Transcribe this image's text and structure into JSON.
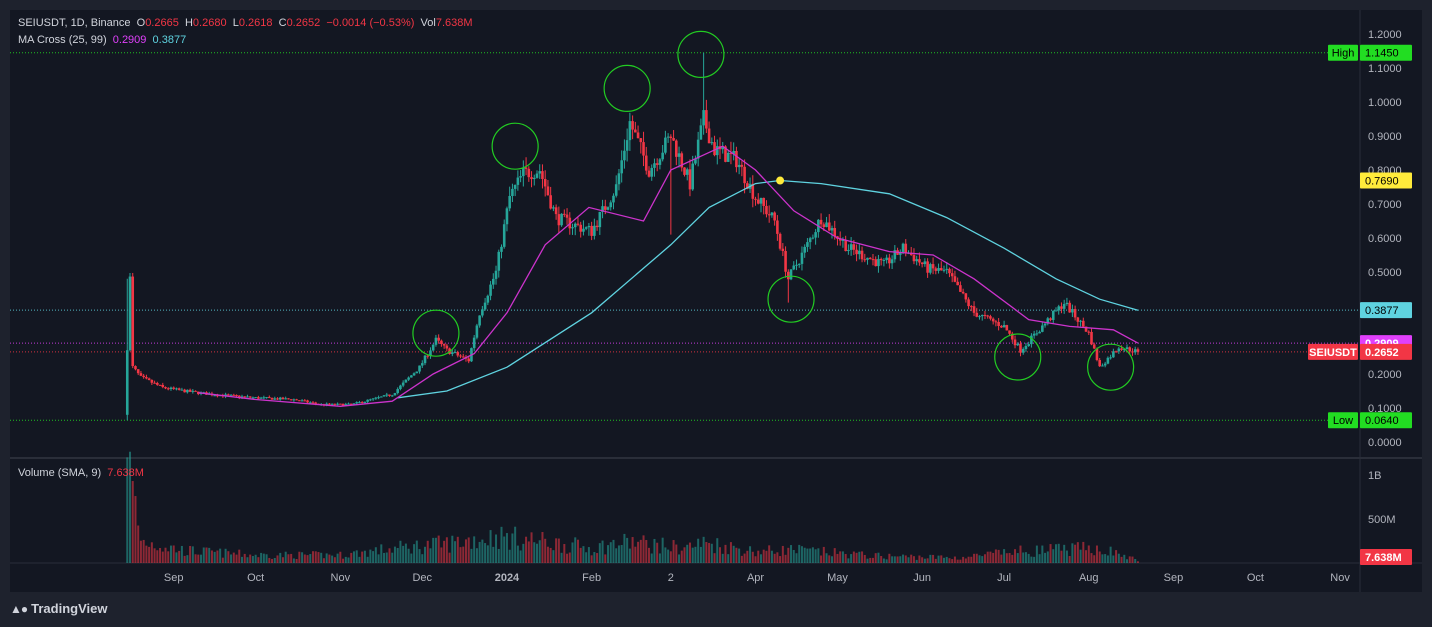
{
  "header": {
    "symbol": "SEIUSDT, 1D, Binance",
    "open_label": "O",
    "open": "0.2665",
    "high_label": "H",
    "high": "0.2680",
    "low_label": "L",
    "low": "0.2618",
    "close_label": "C",
    "close": "0.2652",
    "change": "−0.0014 (−0.53%)",
    "vol_label": "Vol",
    "vol": "7.638M"
  },
  "ma_legend": {
    "label": "MA Cross (25, 99)",
    "ma25": "0.2909",
    "ma99": "0.3877"
  },
  "volume_legend": {
    "label": "Volume (SMA, 9)",
    "value": "7.638M"
  },
  "colors": {
    "up": "#26a69a",
    "down": "#f23645",
    "ma25": "#cc33cc",
    "ma99": "#5fd3e0",
    "cross": "#ffeb3b",
    "circle": "#22cc22",
    "level": "#4caf50",
    "bg": "#131722"
  },
  "brand": {
    "name": "TradingView",
    "icon": "tradingview-logo-icon"
  },
  "chart_data": {
    "type": "candlestick",
    "price_axis": {
      "ylim": [
        0.0,
        1.2
      ],
      "ticks": [
        "1.2000",
        "1.1000",
        "1.0000",
        "0.9000",
        "0.8000",
        "0.7000",
        "0.6000",
        "0.5000",
        "0.4000",
        "0.3000",
        "0.2000",
        "0.1000",
        "0.0000"
      ]
    },
    "volume_axis": {
      "ticks": [
        "1B",
        "500M"
      ]
    },
    "x_labels": [
      "Sep",
      "Oct",
      "Nov",
      "Dec",
      "2024",
      "Feb",
      "2",
      "Apr",
      "May",
      "Jun",
      "Jul",
      "Aug",
      "Sep",
      "Oct",
      "Nov"
    ],
    "x_range": [
      "2023-08-16",
      "2024-11-05"
    ],
    "price_markers": [
      {
        "label": "High",
        "value": "1.1450",
        "price": 1.145,
        "color": "#22dd22"
      },
      {
        "label": "",
        "value": "0.7690",
        "price": 0.769,
        "color": "#ffeb3b"
      },
      {
        "label": "",
        "value": "0.3877",
        "price": 0.3877,
        "color": "#5fd3e0"
      },
      {
        "label": "",
        "value": "0.2909",
        "price": 0.2909,
        "color": "#e040fb"
      },
      {
        "label": "SEIUSDT",
        "value": "0.2652",
        "price": 0.2652,
        "color": "#f23645"
      },
      {
        "label": "Low",
        "value": "0.0640",
        "price": 0.064,
        "color": "#22dd22"
      }
    ],
    "volume_marker": {
      "value": "7.638M",
      "color": "#f23645"
    },
    "price_path": [
      [
        "2023-08-15",
        0.064
      ],
      [
        "2023-08-16",
        0.48
      ],
      [
        "2023-08-17",
        0.22
      ],
      [
        "2023-08-20",
        0.19
      ],
      [
        "2023-08-28",
        0.16
      ],
      [
        "2023-09-05",
        0.15
      ],
      [
        "2023-09-15",
        0.14
      ],
      [
        "2023-10-01",
        0.13
      ],
      [
        "2023-10-15",
        0.125
      ],
      [
        "2023-10-25",
        0.11
      ],
      [
        "2023-11-05",
        0.11
      ],
      [
        "2023-11-20",
        0.14
      ],
      [
        "2023-11-30",
        0.22
      ],
      [
        "2023-12-06",
        0.3
      ],
      [
        "2023-12-10",
        0.27
      ],
      [
        "2023-12-18",
        0.24
      ],
      [
        "2023-12-22",
        0.38
      ],
      [
        "2023-12-28",
        0.5
      ],
      [
        "2024-01-02",
        0.72
      ],
      [
        "2024-01-07",
        0.79
      ],
      [
        "2024-01-13",
        0.8
      ],
      [
        "2024-01-19",
        0.66
      ],
      [
        "2024-01-25",
        0.64
      ],
      [
        "2024-02-01",
        0.62
      ],
      [
        "2024-02-10",
        0.75
      ],
      [
        "2024-02-15",
        0.94
      ],
      [
        "2024-02-22",
        0.8
      ],
      [
        "2024-03-01",
        0.9
      ],
      [
        "2024-03-08",
        0.76
      ],
      [
        "2024-03-13",
        0.95
      ],
      [
        "2024-03-17",
        0.86
      ],
      [
        "2024-03-25",
        0.83
      ],
      [
        "2024-04-01",
        0.72
      ],
      [
        "2024-04-08",
        0.65
      ],
      [
        "2024-04-13",
        0.48
      ],
      [
        "2024-04-20",
        0.58
      ],
      [
        "2024-04-25",
        0.66
      ],
      [
        "2024-05-05",
        0.57
      ],
      [
        "2024-05-18",
        0.52
      ],
      [
        "2024-05-25",
        0.57
      ],
      [
        "2024-06-03",
        0.51
      ],
      [
        "2024-06-10",
        0.5
      ],
      [
        "2024-06-20",
        0.38
      ],
      [
        "2024-07-01",
        0.34
      ],
      [
        "2024-07-07",
        0.27
      ],
      [
        "2024-07-15",
        0.34
      ],
      [
        "2024-07-23",
        0.41
      ],
      [
        "2024-08-01",
        0.32
      ],
      [
        "2024-08-05",
        0.22
      ],
      [
        "2024-08-12",
        0.28
      ],
      [
        "2024-08-19",
        0.2652
      ]
    ],
    "volume_path": [
      [
        "2023-08-15",
        1200000000
      ],
      [
        "2023-08-20",
        250000000
      ],
      [
        "2023-09-05",
        140000000
      ],
      [
        "2023-10-01",
        90000000
      ],
      [
        "2023-11-01",
        90000000
      ],
      [
        "2023-11-25",
        180000000
      ],
      [
        "2023-12-10",
        220000000
      ],
      [
        "2023-12-28",
        300000000
      ],
      [
        "2024-01-10",
        260000000
      ],
      [
        "2024-02-01",
        170000000
      ],
      [
        "2024-02-15",
        240000000
      ],
      [
        "2024-03-05",
        170000000
      ],
      [
        "2024-03-14",
        230000000
      ],
      [
        "2024-04-01",
        130000000
      ],
      [
        "2024-04-14",
        150000000
      ],
      [
        "2024-05-15",
        80000000
      ],
      [
        "2024-06-15",
        60000000
      ],
      [
        "2024-07-05",
        130000000
      ],
      [
        "2024-08-05",
        170000000
      ],
      [
        "2024-08-19",
        30000000
      ]
    ],
    "ma25_path": [
      [
        "2023-09-10",
        0.145
      ],
      [
        "2023-10-01",
        0.125
      ],
      [
        "2023-11-01",
        0.105
      ],
      [
        "2023-11-20",
        0.12
      ],
      [
        "2023-12-05",
        0.2
      ],
      [
        "2023-12-20",
        0.26
      ],
      [
        "2024-01-01",
        0.38
      ],
      [
        "2024-01-15",
        0.58
      ],
      [
        "2024-01-31",
        0.69
      ],
      [
        "2024-02-20",
        0.65
      ],
      [
        "2024-03-01",
        0.8
      ],
      [
        "2024-03-20",
        0.87
      ],
      [
        "2024-04-01",
        0.8
      ],
      [
        "2024-04-15",
        0.68
      ],
      [
        "2024-05-01",
        0.6
      ],
      [
        "2024-05-20",
        0.56
      ],
      [
        "2024-06-05",
        0.55
      ],
      [
        "2024-06-20",
        0.48
      ],
      [
        "2024-07-10",
        0.36
      ],
      [
        "2024-07-25",
        0.34
      ],
      [
        "2024-08-10",
        0.33
      ],
      [
        "2024-08-19",
        0.2909
      ]
    ],
    "ma99_path": [
      [
        "2023-11-22",
        0.13
      ],
      [
        "2023-12-10",
        0.15
      ],
      [
        "2024-01-01",
        0.22
      ],
      [
        "2024-02-01",
        0.38
      ],
      [
        "2024-03-01",
        0.58
      ],
      [
        "2024-03-15",
        0.69
      ],
      [
        "2024-04-01",
        0.76
      ],
      [
        "2024-04-10",
        0.769
      ],
      [
        "2024-04-25",
        0.76
      ],
      [
        "2024-05-20",
        0.73
      ],
      [
        "2024-06-10",
        0.66
      ],
      [
        "2024-07-01",
        0.57
      ],
      [
        "2024-07-20",
        0.48
      ],
      [
        "2024-08-05",
        0.42
      ],
      [
        "2024-08-19",
        0.3877
      ]
    ],
    "cross_point": [
      "2024-04-10",
      0.769
    ],
    "highlight_circles": [
      [
        "2023-12-06",
        0.32
      ],
      [
        "2024-01-04",
        0.87
      ],
      [
        "2024-02-14",
        1.04
      ],
      [
        "2024-03-12",
        1.14
      ],
      [
        "2024-04-14",
        0.42
      ],
      [
        "2024-07-06",
        0.25
      ],
      [
        "2024-08-09",
        0.22
      ]
    ]
  }
}
